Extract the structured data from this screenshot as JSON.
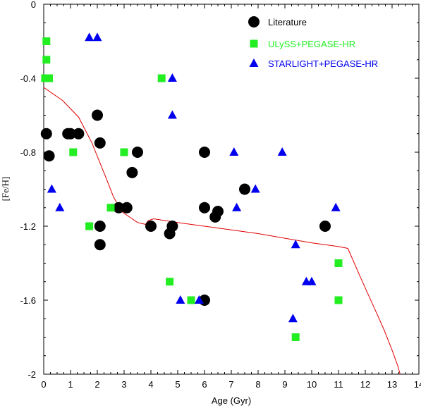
{
  "chart_data": {
    "type": "scatter",
    "xlabel": "Age (Gyr)",
    "ylabel": "[Fe/H]",
    "xlim": [
      0,
      14
    ],
    "ylim": [
      -2,
      0
    ],
    "xticks": [
      0,
      1,
      2,
      3,
      4,
      5,
      6,
      7,
      8,
      9,
      10,
      11,
      12,
      13,
      14
    ],
    "xticklabels": [
      "0",
      "1",
      "2",
      "3",
      "4",
      "5",
      "6",
      "7",
      "8",
      "9",
      "10",
      "11",
      "12",
      "13",
      "14"
    ],
    "yticks": [
      0,
      -0.4,
      -0.8,
      -1.2,
      -1.6,
      -2
    ],
    "yticklabels": [
      "0",
      "-0.4",
      "-0.8",
      "-1.2",
      "-1.6",
      "-2"
    ],
    "grid": false,
    "legend_position": "top-right",
    "series": [
      {
        "name": "Literature",
        "marker": "circle",
        "color": "#000000",
        "points": [
          {
            "x": 0.1,
            "y": -0.7
          },
          {
            "x": 0.2,
            "y": -0.82
          },
          {
            "x": 0.9,
            "y": -0.7
          },
          {
            "x": 1.0,
            "y": -0.7
          },
          {
            "x": 1.3,
            "y": -0.7
          },
          {
            "x": 2.0,
            "y": -0.6
          },
          {
            "x": 2.1,
            "y": -0.75
          },
          {
            "x": 2.1,
            "y": -1.2
          },
          {
            "x": 2.1,
            "y": -1.3
          },
          {
            "x": 2.8,
            "y": -1.1
          },
          {
            "x": 3.1,
            "y": -1.1
          },
          {
            "x": 3.3,
            "y": -0.91
          },
          {
            "x": 3.5,
            "y": -0.8
          },
          {
            "x": 4.0,
            "y": -1.2
          },
          {
            "x": 4.7,
            "y": -1.24
          },
          {
            "x": 4.8,
            "y": -1.2
          },
          {
            "x": 6.0,
            "y": -0.8
          },
          {
            "x": 6.0,
            "y": -1.1
          },
          {
            "x": 6.4,
            "y": -1.15
          },
          {
            "x": 6.5,
            "y": -1.12
          },
          {
            "x": 6.0,
            "y": -1.6
          },
          {
            "x": 7.5,
            "y": -1.0
          },
          {
            "x": 10.5,
            "y": -1.2
          }
        ]
      },
      {
        "name": "ULySS+PEGASE-HR",
        "marker": "square",
        "color": "#22ee22",
        "points": [
          {
            "x": 0.1,
            "y": -0.2
          },
          {
            "x": 0.1,
            "y": -0.3
          },
          {
            "x": 0.05,
            "y": -0.4
          },
          {
            "x": 0.2,
            "y": -0.4
          },
          {
            "x": 1.1,
            "y": -0.8
          },
          {
            "x": 1.7,
            "y": -1.2
          },
          {
            "x": 2.5,
            "y": -1.1
          },
          {
            "x": 3.0,
            "y": -0.8
          },
          {
            "x": 4.4,
            "y": -0.4
          },
          {
            "x": 4.7,
            "y": -1.5
          },
          {
            "x": 5.5,
            "y": -1.6
          },
          {
            "x": 9.4,
            "y": -1.8
          },
          {
            "x": 11.0,
            "y": -1.4
          },
          {
            "x": 11.0,
            "y": -1.6
          }
        ]
      },
      {
        "name": "STARLIGHT+PEGASE-HR",
        "marker": "triangle",
        "color": "#0000ee",
        "points": [
          {
            "x": 1.7,
            "y": -0.18
          },
          {
            "x": 2.0,
            "y": -0.18
          },
          {
            "x": 0.3,
            "y": -1.0
          },
          {
            "x": 0.6,
            "y": -1.1
          },
          {
            "x": 4.8,
            "y": -0.4
          },
          {
            "x": 4.8,
            "y": -0.6
          },
          {
            "x": 5.1,
            "y": -1.6
          },
          {
            "x": 5.8,
            "y": -1.6
          },
          {
            "x": 7.1,
            "y": -0.8
          },
          {
            "x": 7.2,
            "y": -1.1
          },
          {
            "x": 7.9,
            "y": -1.0
          },
          {
            "x": 8.9,
            "y": -0.8
          },
          {
            "x": 9.3,
            "y": -1.7
          },
          {
            "x": 9.4,
            "y": -1.3
          },
          {
            "x": 9.8,
            "y": -1.5
          },
          {
            "x": 10.0,
            "y": -1.5
          },
          {
            "x": 10.9,
            "y": -1.1
          }
        ]
      }
    ],
    "model_line": {
      "color": "#e00000",
      "x": [
        0,
        0.7,
        1.3,
        1.8,
        2.3,
        2.6,
        2.9,
        3.2,
        3.5,
        3.8,
        3.9,
        4.1,
        5.0,
        6.0,
        7.0,
        8.0,
        9.0,
        10.0,
        11.0,
        11.35,
        11.8,
        12.3,
        12.7,
        13.0,
        13.2,
        13.3
      ],
      "y": [
        -0.45,
        -0.52,
        -0.61,
        -0.75,
        -0.93,
        -1.04,
        -1.12,
        -1.15,
        -1.18,
        -1.19,
        -1.17,
        -1.16,
        -1.18,
        -1.2,
        -1.22,
        -1.24,
        -1.265,
        -1.29,
        -1.31,
        -1.32,
        -1.47,
        -1.63,
        -1.76,
        -1.87,
        -1.95,
        -2.0
      ]
    }
  }
}
